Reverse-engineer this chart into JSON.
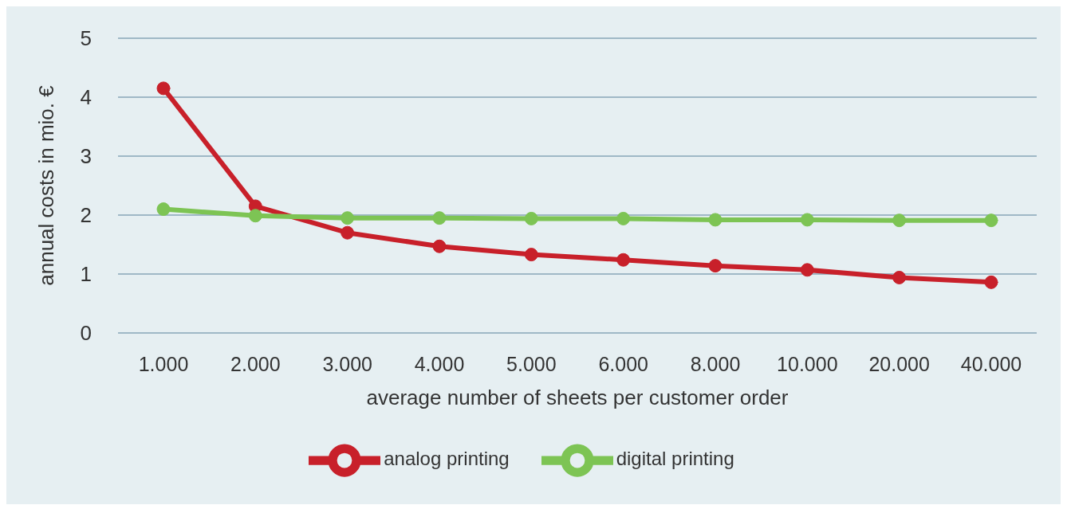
{
  "chart_data": {
    "type": "line",
    "xlabel": "average number of sheets per customer order",
    "ylabel": "annual costs in mio. €",
    "categories": [
      "1.000",
      "2.000",
      "3.000",
      "4.000",
      "5.000",
      "6.000",
      "8.000",
      "10.000",
      "20.000",
      "40.000"
    ],
    "series": [
      {
        "name": "analog printing",
        "color": "#c8202a",
        "values": [
          4.15,
          2.15,
          1.7,
          1.47,
          1.33,
          1.24,
          1.14,
          1.07,
          0.94,
          0.86
        ]
      },
      {
        "name": "digital printing",
        "color": "#7dc454",
        "values": [
          2.1,
          1.99,
          1.95,
          1.95,
          1.94,
          1.94,
          1.92,
          1.92,
          1.91,
          1.91
        ]
      }
    ],
    "ylim": [
      0,
      5
    ],
    "yticks": [
      0,
      1,
      2,
      3,
      4,
      5
    ],
    "grid": "y",
    "legend": "bottom",
    "marker": "circle",
    "line_style": "solid"
  }
}
